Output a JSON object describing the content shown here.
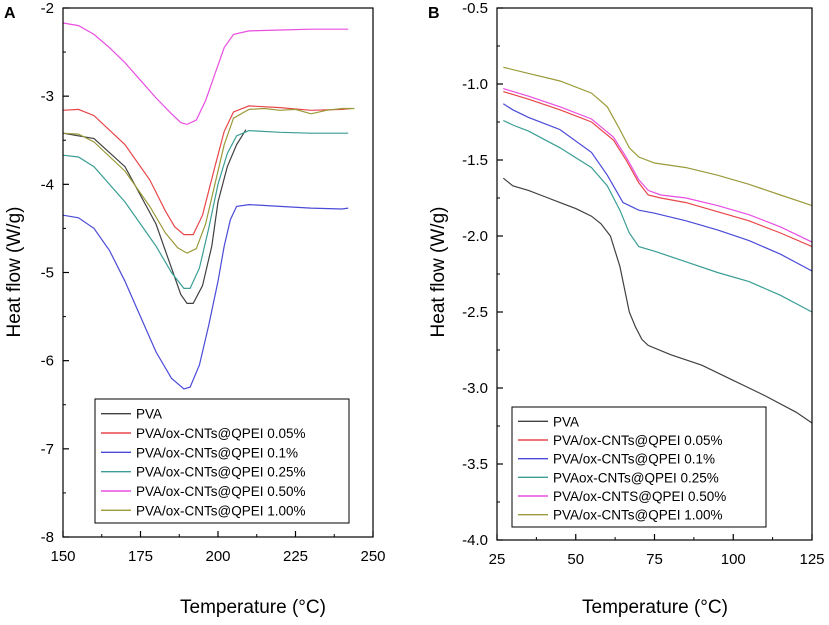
{
  "chart_data": [
    {
      "panel_label": "A",
      "type": "line",
      "xlabel": "Temperature (°C)",
      "ylabel": "Heat flow (W/g)",
      "xlim": [
        150,
        250
      ],
      "ylim": [
        -8,
        -2
      ],
      "xticks": [
        150,
        175,
        200,
        225,
        250
      ],
      "yticks": [
        -8,
        -7,
        -6,
        -5,
        -4,
        -3,
        -2
      ],
      "legend_position": "bottom",
      "series": [
        {
          "name": "PVA",
          "color": "#404040",
          "points": [
            [
              150,
              -3.42
            ],
            [
              160,
              -3.48
            ],
            [
              170,
              -3.8
            ],
            [
              180,
              -4.45
            ],
            [
              185,
              -4.95
            ],
            [
              188,
              -5.25
            ],
            [
              190,
              -5.35
            ],
            [
              192,
              -5.35
            ],
            [
              195,
              -5.15
            ],
            [
              198,
              -4.7
            ],
            [
              200,
              -4.2
            ],
            [
              203,
              -3.8
            ],
            [
              206,
              -3.55
            ],
            [
              209,
              -3.38
            ]
          ]
        },
        {
          "name": "PVA/ox-CNTs@QPEI 0.05%",
          "color": "#e8474a",
          "points": [
            [
              150,
              -3.16
            ],
            [
              155,
              -3.15
            ],
            [
              160,
              -3.22
            ],
            [
              170,
              -3.55
            ],
            [
              178,
              -3.95
            ],
            [
              183,
              -4.3
            ],
            [
              186,
              -4.48
            ],
            [
              189,
              -4.57
            ],
            [
              192,
              -4.57
            ],
            [
              195,
              -4.35
            ],
            [
              199,
              -3.8
            ],
            [
              202,
              -3.4
            ],
            [
              205,
              -3.18
            ],
            [
              210,
              -3.11
            ],
            [
              220,
              -3.13
            ],
            [
              230,
              -3.16
            ],
            [
              240,
              -3.15
            ],
            [
              243,
              -3.14
            ]
          ]
        },
        {
          "name": "PVA/ox-CNTs@QPEI 0.1%",
          "color": "#4a4ad8",
          "points": [
            [
              150,
              -4.35
            ],
            [
              155,
              -4.38
            ],
            [
              160,
              -4.5
            ],
            [
              165,
              -4.75
            ],
            [
              170,
              -5.1
            ],
            [
              175,
              -5.5
            ],
            [
              180,
              -5.9
            ],
            [
              185,
              -6.2
            ],
            [
              189,
              -6.32
            ],
            [
              191,
              -6.3
            ],
            [
              194,
              -6.05
            ],
            [
              197,
              -5.6
            ],
            [
              200,
              -5.1
            ],
            [
              202,
              -4.7
            ],
            [
              204,
              -4.4
            ],
            [
              206,
              -4.25
            ],
            [
              210,
              -4.23
            ],
            [
              220,
              -4.25
            ],
            [
              230,
              -4.27
            ],
            [
              240,
              -4.28
            ],
            [
              242,
              -4.27
            ]
          ]
        },
        {
          "name": "PVA/ox-CNTs@QPEI 0.25%",
          "color": "#3a9e95",
          "points": [
            [
              150,
              -3.67
            ],
            [
              155,
              -3.69
            ],
            [
              160,
              -3.8
            ],
            [
              170,
              -4.2
            ],
            [
              180,
              -4.7
            ],
            [
              185,
              -5.0
            ],
            [
              189,
              -5.18
            ],
            [
              191,
              -5.18
            ],
            [
              194,
              -4.95
            ],
            [
              197,
              -4.5
            ],
            [
              200,
              -4.0
            ],
            [
              203,
              -3.65
            ],
            [
              206,
              -3.45
            ],
            [
              210,
              -3.39
            ],
            [
              220,
              -3.41
            ],
            [
              230,
              -3.42
            ],
            [
              240,
              -3.42
            ],
            [
              242,
              -3.42
            ]
          ]
        },
        {
          "name": "PVA/ox-CNTs@QPEI 0.50%",
          "color": "#e84ee0",
          "points": [
            [
              150,
              -2.17
            ],
            [
              155,
              -2.2
            ],
            [
              160,
              -2.3
            ],
            [
              165,
              -2.45
            ],
            [
              170,
              -2.62
            ],
            [
              175,
              -2.82
            ],
            [
              180,
              -3.02
            ],
            [
              185,
              -3.2
            ],
            [
              188,
              -3.3
            ],
            [
              190,
              -3.32
            ],
            [
              193,
              -3.27
            ],
            [
              196,
              -3.05
            ],
            [
              199,
              -2.75
            ],
            [
              202,
              -2.45
            ],
            [
              205,
              -2.3
            ],
            [
              210,
              -2.26
            ],
            [
              220,
              -2.25
            ],
            [
              230,
              -2.24
            ],
            [
              242,
              -2.24
            ]
          ]
        },
        {
          "name": "PVA/ox-CNTs@QPEI 1.00%",
          "color": "#9a9a3a",
          "points": [
            [
              150,
              -3.42
            ],
            [
              155,
              -3.43
            ],
            [
              160,
              -3.52
            ],
            [
              170,
              -3.85
            ],
            [
              178,
              -4.25
            ],
            [
              183,
              -4.55
            ],
            [
              187,
              -4.72
            ],
            [
              190,
              -4.78
            ],
            [
              193,
              -4.73
            ],
            [
              196,
              -4.45
            ],
            [
              199,
              -4.0
            ],
            [
              202,
              -3.55
            ],
            [
              205,
              -3.25
            ],
            [
              210,
              -3.15
            ],
            [
              215,
              -3.14
            ],
            [
              220,
              -3.16
            ],
            [
              225,
              -3.15
            ],
            [
              230,
              -3.2
            ],
            [
              235,
              -3.16
            ],
            [
              240,
              -3.14
            ],
            [
              244,
              -3.14
            ]
          ]
        }
      ]
    },
    {
      "panel_label": "B",
      "type": "line",
      "xlabel": "Temperature (°C)",
      "ylabel": "Heat flow (W/g)",
      "xlim": [
        25,
        125
      ],
      "ylim": [
        -4.0,
        -0.5
      ],
      "xticks": [
        25,
        50,
        75,
        100,
        125
      ],
      "yticks": [
        -4.0,
        -3.5,
        -3.0,
        -2.5,
        -2.0,
        -1.5,
        -1.0,
        -0.5
      ],
      "legend_position": "bottom-left",
      "series": [
        {
          "name": "PVA",
          "color": "#404040",
          "points": [
            [
              27,
              -1.62
            ],
            [
              30,
              -1.67
            ],
            [
              35,
              -1.7
            ],
            [
              40,
              -1.74
            ],
            [
              45,
              -1.78
            ],
            [
              50,
              -1.82
            ],
            [
              55,
              -1.87
            ],
            [
              58,
              -1.92
            ],
            [
              61,
              -2.0
            ],
            [
              64,
              -2.2
            ],
            [
              67,
              -2.5
            ],
            [
              69,
              -2.6
            ],
            [
              71,
              -2.68
            ],
            [
              73,
              -2.72
            ],
            [
              80,
              -2.78
            ],
            [
              90,
              -2.85
            ],
            [
              100,
              -2.95
            ],
            [
              110,
              -3.05
            ],
            [
              120,
              -3.16
            ],
            [
              125,
              -3.23
            ]
          ]
        },
        {
          "name": "PVA/ox-CNTs@QPEI 0.05%",
          "color": "#e8474a",
          "points": [
            [
              27,
              -1.05
            ],
            [
              35,
              -1.1
            ],
            [
              45,
              -1.17
            ],
            [
              55,
              -1.25
            ],
            [
              62,
              -1.37
            ],
            [
              66,
              -1.5
            ],
            [
              70,
              -1.65
            ],
            [
              73,
              -1.73
            ],
            [
              77,
              -1.75
            ],
            [
              85,
              -1.78
            ],
            [
              95,
              -1.84
            ],
            [
              105,
              -1.9
            ],
            [
              115,
              -1.98
            ],
            [
              125,
              -2.07
            ]
          ]
        },
        {
          "name": "PVA/ox-CNTs@QPEI 0.1%",
          "color": "#4a4ad8",
          "points": [
            [
              27,
              -1.13
            ],
            [
              30,
              -1.17
            ],
            [
              35,
              -1.22
            ],
            [
              45,
              -1.3
            ],
            [
              55,
              -1.45
            ],
            [
              60,
              -1.6
            ],
            [
              65,
              -1.78
            ],
            [
              70,
              -1.83
            ],
            [
              75,
              -1.85
            ],
            [
              85,
              -1.9
            ],
            [
              95,
              -1.96
            ],
            [
              105,
              -2.03
            ],
            [
              115,
              -2.12
            ],
            [
              125,
              -2.23
            ]
          ]
        },
        {
          "name": "PVAox-CNTs@QPEI 0.25%",
          "color": "#3a9e95",
          "points": [
            [
              27,
              -1.24
            ],
            [
              30,
              -1.27
            ],
            [
              35,
              -1.31
            ],
            [
              45,
              -1.42
            ],
            [
              55,
              -1.55
            ],
            [
              60,
              -1.67
            ],
            [
              64,
              -1.83
            ],
            [
              67,
              -1.98
            ],
            [
              70,
              -2.07
            ],
            [
              75,
              -2.1
            ],
            [
              85,
              -2.17
            ],
            [
              95,
              -2.24
            ],
            [
              105,
              -2.3
            ],
            [
              115,
              -2.39
            ],
            [
              125,
              -2.5
            ]
          ]
        },
        {
          "name": "PVA/ox-CNTS@QPEI 0.50%",
          "color": "#e84ee0",
          "points": [
            [
              27,
              -1.03
            ],
            [
              35,
              -1.08
            ],
            [
              45,
              -1.15
            ],
            [
              55,
              -1.23
            ],
            [
              62,
              -1.35
            ],
            [
              66,
              -1.48
            ],
            [
              70,
              -1.63
            ],
            [
              73,
              -1.7
            ],
            [
              77,
              -1.73
            ],
            [
              85,
              -1.75
            ],
            [
              95,
              -1.8
            ],
            [
              105,
              -1.86
            ],
            [
              115,
              -1.94
            ],
            [
              125,
              -2.04
            ]
          ]
        },
        {
          "name": "PVA/ox-CNTs@QPEI 1.00%",
          "color": "#9a9a3a",
          "points": [
            [
              27,
              -0.89
            ],
            [
              35,
              -0.93
            ],
            [
              45,
              -0.98
            ],
            [
              55,
              -1.06
            ],
            [
              60,
              -1.15
            ],
            [
              64,
              -1.3
            ],
            [
              67,
              -1.42
            ],
            [
              70,
              -1.48
            ],
            [
              75,
              -1.52
            ],
            [
              85,
              -1.55
            ],
            [
              95,
              -1.6
            ],
            [
              105,
              -1.66
            ],
            [
              115,
              -1.73
            ],
            [
              125,
              -1.8
            ]
          ]
        }
      ]
    }
  ]
}
